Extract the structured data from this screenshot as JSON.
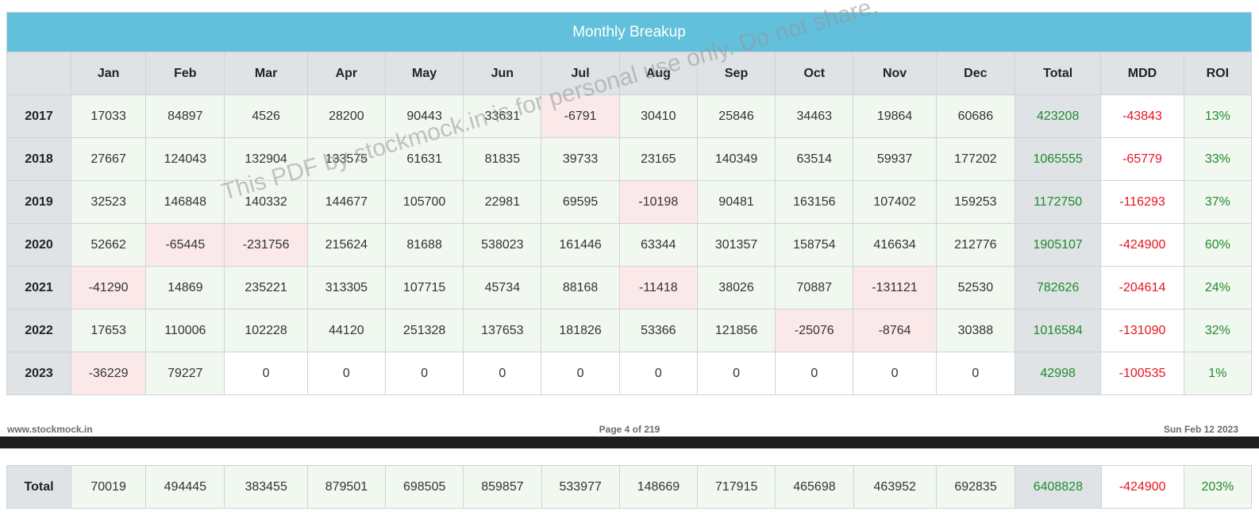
{
  "table": {
    "title": "Monthly Breakup",
    "headers": [
      "",
      "Jan",
      "Feb",
      "Mar",
      "Apr",
      "May",
      "Jun",
      "Jul",
      "Aug",
      "Sep",
      "Oct",
      "Nov",
      "Dec",
      "Total",
      "MDD",
      "ROI"
    ],
    "rows": [
      {
        "year": "2017",
        "months": [
          "17033",
          "84897",
          "4526",
          "28200",
          "90443",
          "33631",
          "-6791",
          "30410",
          "25846",
          "34463",
          "19864",
          "60686"
        ],
        "total": "423208",
        "mdd": "-43843",
        "roi": "13%"
      },
      {
        "year": "2018",
        "months": [
          "27667",
          "124043",
          "132904",
          "133575",
          "61631",
          "81835",
          "39733",
          "23165",
          "140349",
          "63514",
          "59937",
          "177202"
        ],
        "total": "1065555",
        "mdd": "-65779",
        "roi": "33%"
      },
      {
        "year": "2019",
        "months": [
          "32523",
          "146848",
          "140332",
          "144677",
          "105700",
          "22981",
          "69595",
          "-10198",
          "90481",
          "163156",
          "107402",
          "159253"
        ],
        "total": "1172750",
        "mdd": "-116293",
        "roi": "37%"
      },
      {
        "year": "2020",
        "months": [
          "52662",
          "-65445",
          "-231756",
          "215624",
          "81688",
          "538023",
          "161446",
          "63344",
          "301357",
          "158754",
          "416634",
          "212776"
        ],
        "total": "1905107",
        "mdd": "-424900",
        "roi": "60%"
      },
      {
        "year": "2021",
        "months": [
          "-41290",
          "14869",
          "235221",
          "313305",
          "107715",
          "45734",
          "88168",
          "-11418",
          "38026",
          "70887",
          "-131121",
          "52530"
        ],
        "total": "782626",
        "mdd": "-204614",
        "roi": "24%"
      },
      {
        "year": "2022",
        "months": [
          "17653",
          "110006",
          "102228",
          "44120",
          "251328",
          "137653",
          "181826",
          "53366",
          "121856",
          "-25076",
          "-8764",
          "30388"
        ],
        "total": "1016584",
        "mdd": "-131090",
        "roi": "32%"
      },
      {
        "year": "2023",
        "months": [
          "-36229",
          "79227",
          "0",
          "0",
          "0",
          "0",
          "0",
          "0",
          "0",
          "0",
          "0",
          "0"
        ],
        "total": "42998",
        "mdd": "-100535",
        "roi": "1%"
      }
    ],
    "total_row": {
      "label": "Total",
      "months": [
        "70019",
        "494445",
        "383455",
        "879501",
        "698505",
        "859857",
        "533977",
        "148669",
        "717915",
        "465698",
        "463952",
        "692835"
      ],
      "total": "6408828",
      "mdd": "-424900",
      "roi": "203%"
    }
  },
  "footer": {
    "site": "www.stockmock.in",
    "page": "Page 4 of 219",
    "date": "Sun Feb 12 2023"
  },
  "watermark": "This PDF by stockmock.in is for personal use only. Do not share.",
  "colors": {
    "title_bar": "#62c0dc",
    "header_bg": "#dfe3e6",
    "positive_cell_bg": "#f1f8ef",
    "negative_cell_bg": "#fbe9ea",
    "total_text": "#1f8a2a",
    "mdd_text": "#e8141e",
    "roi_text": "#1f8a2a"
  }
}
